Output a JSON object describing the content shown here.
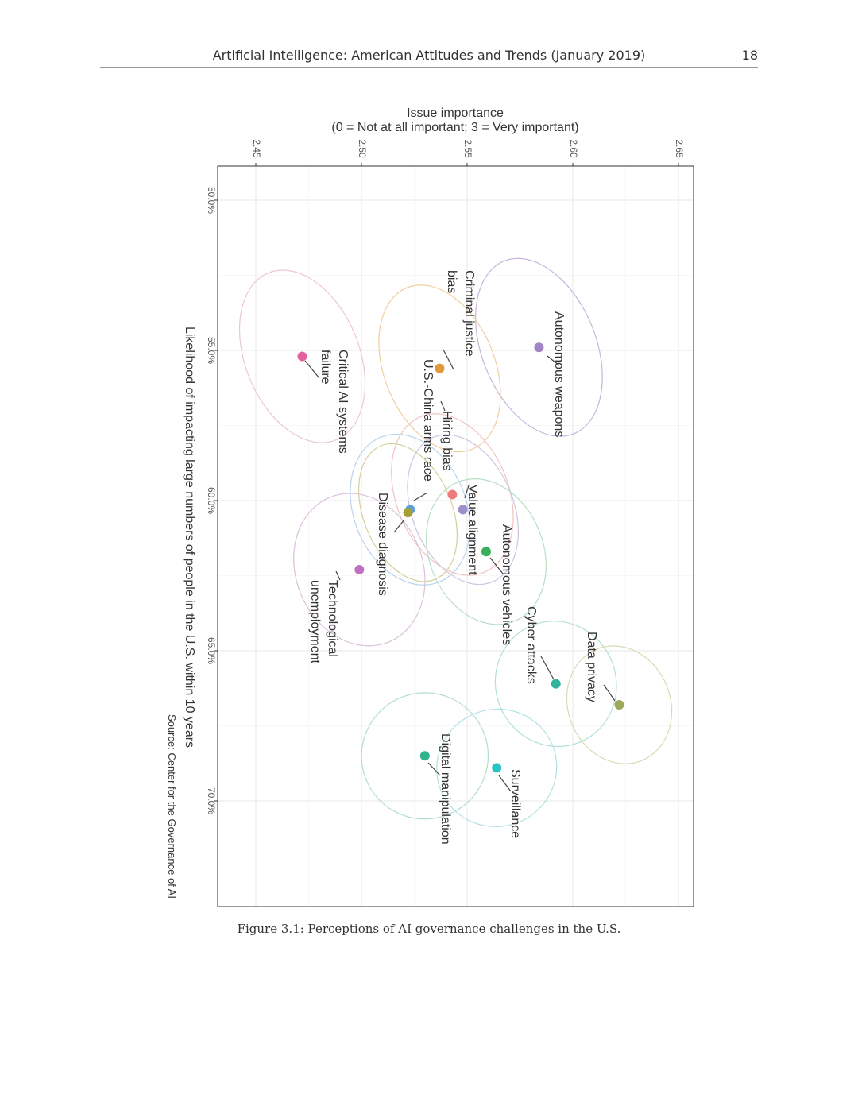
{
  "header": {
    "running_title": "Artificial Intelligence: American Attitudes and Trends (January 2019)",
    "page_number": "18"
  },
  "caption": "Figure 3.1: Perceptions of AI governance challenges in the U.S.",
  "chart_data": {
    "type": "scatter",
    "orientation_note_rotated": "Figure printed rotated 90° clockwise on the page",
    "ylabel_line1": "Issue importance",
    "ylabel_line2": "(0 = Not at all important; 3 = Very important)",
    "xlabel": "Likelihood of impacting large numbers of people in the U.S. within 10 years",
    "source": "Source: Center for the Governance of AI",
    "x_ticks": [
      "50.0%",
      "55.0%",
      "60.0%",
      "65.0%",
      "70.0%"
    ],
    "x_tick_values": [
      50,
      55,
      60,
      65,
      70
    ],
    "y_ticks": [
      "2.45",
      "2.50",
      "2.55",
      "2.60",
      "2.65"
    ],
    "y_tick_values": [
      2.45,
      2.5,
      2.55,
      2.6,
      2.65
    ],
    "xlim": [
      49,
      73.7
    ],
    "ylim": [
      2.4315,
      2.6575
    ],
    "grid": true,
    "points": [
      {
        "label": "Autonomous weapons",
        "x": 54.9,
        "y": 2.584,
        "color": "#a183c6",
        "ellipse_color": "#c7b5dd",
        "rx": 3.1,
        "ry": 0.027
      },
      {
        "label": "Criminal justice bias",
        "x": 55.6,
        "y": 2.537,
        "color": "#e09a3a",
        "ellipse_color": "#f0cfa0",
        "rx": 2.9,
        "ry": 0.0262
      },
      {
        "label": "Critical AI systems failure",
        "x": 55.2,
        "y": 2.472,
        "color": "#e3609c",
        "ellipse_color": "#edc6d6",
        "rx": 3.0,
        "ry": 0.027
      },
      {
        "label": "Hiring bias",
        "x": 59.8,
        "y": 2.543,
        "color": "#f07b7b",
        "ellipse_color": "#f2c2c2",
        "rx": 2.8,
        "ry": 0.0266
      },
      {
        "label": "Value alignment",
        "x": 60.3,
        "y": 2.548,
        "color": "#9d8fcc",
        "ellipse_color": "#ccc5e3",
        "rx": 2.6,
        "ry": 0.024
      },
      {
        "label": "U.S.-China arms race",
        "x": 60.3,
        "y": 2.523,
        "color": "#5a9fd6",
        "ellipse_color": "#b8d4ec",
        "rx": 2.6,
        "ry": 0.0266
      },
      {
        "label": "Disease diagnosis",
        "x": 60.4,
        "y": 2.522,
        "color": "#a5a035",
        "ellipse_color": "#d3d09a",
        "rx": 2.4,
        "ry": 0.021
      },
      {
        "label": "Autonomous vehicles",
        "x": 61.7,
        "y": 2.559,
        "color": "#3bb05a",
        "ellipse_color": "#b8dfc3",
        "rx": 2.5,
        "ry": 0.027
      },
      {
        "label": "Technological unemployment",
        "x": 62.3,
        "y": 2.499,
        "color": "#c070c0",
        "ellipse_color": "#dcc0dc",
        "rx": 2.6,
        "ry": 0.03
      },
      {
        "label": "Cyber attacks",
        "x": 66.1,
        "y": 2.592,
        "color": "#2fb59b",
        "ellipse_color": "#b2e0d6",
        "rx": 2.1,
        "ry": 0.0285
      },
      {
        "label": "Data privacy",
        "x": 66.8,
        "y": 2.622,
        "color": "#9da85a",
        "ellipse_color": "#d6dcb4",
        "rx": 2.0,
        "ry": 0.0242
      },
      {
        "label": "Digital manipulation",
        "x": 68.5,
        "y": 2.53,
        "color": "#2fb38a",
        "ellipse_color": "#b3ddd0",
        "rx": 2.1,
        "ry": 0.03
      },
      {
        "label": "Surveillance",
        "x": 68.9,
        "y": 2.564,
        "color": "#28c4c6",
        "ellipse_color": "#b2e2e3",
        "rx": 1.95,
        "ry": 0.0285
      }
    ],
    "labels": [
      {
        "for": "Autonomous weapons",
        "lines": [
          "Autonomous weapons"
        ]
      },
      {
        "for": "Criminal justice bias",
        "lines": [
          "Criminal justice",
          "bias"
        ]
      },
      {
        "for": "Critical AI systems failure",
        "lines": [
          "Critical AI systems",
          "failure"
        ]
      },
      {
        "for": "Hiring bias",
        "lines": [
          "Hiring bias"
        ]
      },
      {
        "for": "Value alignment",
        "lines": [
          "Value alignment"
        ]
      },
      {
        "for": "U.S.-China arms race",
        "lines": [
          "U.S.-China arms race"
        ]
      },
      {
        "for": "Disease diagnosis",
        "lines": [
          "Disease diagnosis"
        ]
      },
      {
        "for": "Autonomous vehicles",
        "lines": [
          "Autonomous vehicles"
        ]
      },
      {
        "for": "Technological unemployment",
        "lines": [
          "Technological",
          "unemployment"
        ]
      },
      {
        "for": "Cyber attacks",
        "lines": [
          "Cyber attacks"
        ]
      },
      {
        "for": "Data privacy",
        "lines": [
          "Data privacy"
        ]
      },
      {
        "for": "Digital manipulation",
        "lines": [
          "Digital manipulation"
        ]
      },
      {
        "for": "Surveillance",
        "lines": [
          "Surveillance"
        ]
      }
    ]
  }
}
